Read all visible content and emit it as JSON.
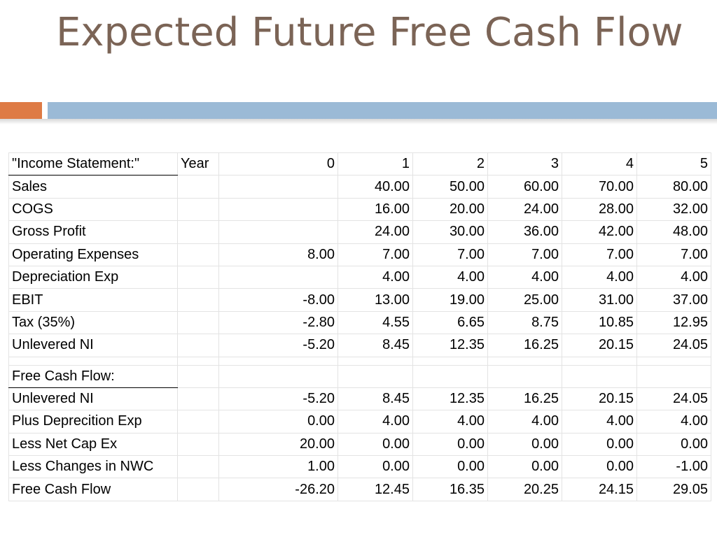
{
  "slide": {
    "title": "Expected Future Free Cash Flow"
  },
  "table": {
    "header": {
      "label": "\"Income Statement:\"",
      "year_label": "Year",
      "years": [
        "0",
        "1",
        "2",
        "3",
        "4",
        "5"
      ]
    },
    "income_rows": [
      {
        "label": "Sales",
        "values": [
          "",
          "40.00",
          "50.00",
          "60.00",
          "70.00",
          "80.00"
        ]
      },
      {
        "label": "COGS",
        "values": [
          "",
          "16.00",
          "20.00",
          "24.00",
          "28.00",
          "32.00"
        ]
      },
      {
        "label": "Gross Profit",
        "values": [
          "",
          "24.00",
          "30.00",
          "36.00",
          "42.00",
          "48.00"
        ]
      },
      {
        "label": "Operating Expenses",
        "values": [
          "8.00",
          "7.00",
          "7.00",
          "7.00",
          "7.00",
          "7.00"
        ]
      },
      {
        "label": "Depreciation Exp",
        "values": [
          "",
          "4.00",
          "4.00",
          "4.00",
          "4.00",
          "4.00"
        ]
      },
      {
        "label": "EBIT",
        "values": [
          "-8.00",
          "13.00",
          "19.00",
          "25.00",
          "31.00",
          "37.00"
        ]
      },
      {
        "label": "Tax (35%)",
        "values": [
          "-2.80",
          "4.55",
          "6.65",
          "8.75",
          "10.85",
          "12.95"
        ]
      },
      {
        "label": "Unlevered NI",
        "values": [
          "-5.20",
          "8.45",
          "12.35",
          "16.25",
          "20.15",
          "24.05"
        ]
      }
    ],
    "fcf_header": "Free Cash Flow:",
    "fcf_rows": [
      {
        "label": "Unlevered NI",
        "values": [
          "-5.20",
          "8.45",
          "12.35",
          "16.25",
          "20.15",
          "24.05"
        ]
      },
      {
        "label": "Plus Deprecition Exp",
        "values": [
          "0.00",
          "4.00",
          "4.00",
          "4.00",
          "4.00",
          "4.00"
        ]
      },
      {
        "label": "Less Net Cap Ex",
        "values": [
          "20.00",
          "0.00",
          "0.00",
          "0.00",
          "0.00",
          "0.00"
        ]
      },
      {
        "label": "Less Changes in NWC",
        "values": [
          "1.00",
          "0.00",
          "0.00",
          "0.00",
          "0.00",
          "-1.00"
        ]
      },
      {
        "label": "Free Cash Flow",
        "values": [
          "-26.20",
          "12.45",
          "16.35",
          "20.25",
          "24.15",
          "29.05"
        ]
      }
    ]
  },
  "colors": {
    "title": "#7b6456",
    "accent_orange": "#de7b45",
    "accent_blue": "#9bbad6"
  }
}
